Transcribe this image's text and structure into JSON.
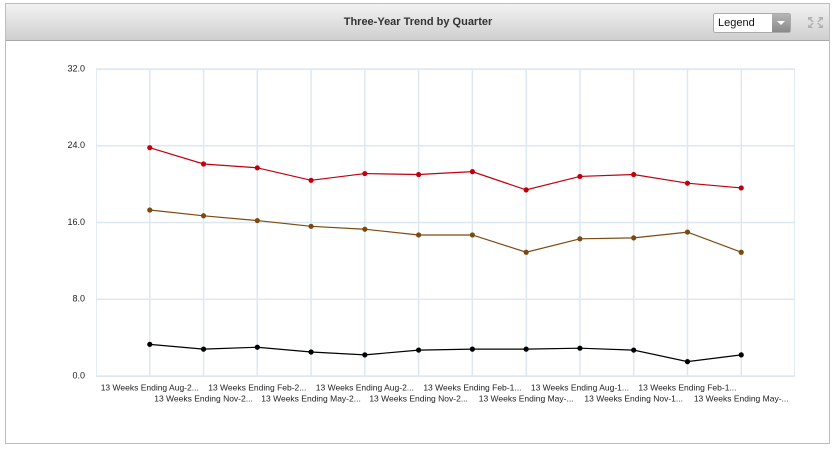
{
  "chart_data": {
    "type": "line",
    "title": "Three-Year Trend by Quarter",
    "categories": [
      "13 Weeks Ending Aug-2...",
      "13 Weeks Ending Nov-2...",
      "13 Weeks Ending Feb-2...",
      "13 Weeks Ending May-2...",
      "13 Weeks Ending Aug-2...",
      "13 Weeks Ending Nov-2...",
      "13 Weeks Ending Feb-1...",
      "13 Weeks Ending May-...",
      "13 Weeks Ending Aug-1...",
      "13 Weeks Ending Nov-1...",
      "13 Weeks Ending Feb-1...",
      "13 Weeks Ending May-..."
    ],
    "series": [
      {
        "color": "#c0000f",
        "values": [
          23.8,
          22.1,
          21.7,
          20.4,
          21.1,
          21.0,
          21.3,
          19.4,
          20.8,
          21.0,
          20.1,
          19.6
        ]
      },
      {
        "color": "#7a4a10",
        "values": [
          17.3,
          16.7,
          16.2,
          15.6,
          15.3,
          14.7,
          14.7,
          12.9,
          14.3,
          14.4,
          15.0,
          12.9
        ]
      },
      {
        "color": "#000000",
        "values": [
          3.3,
          2.8,
          3.0,
          2.5,
          2.2,
          2.7,
          2.8,
          2.8,
          2.9,
          2.7,
          1.5,
          2.2
        ]
      }
    ],
    "ylim": [
      0,
      32
    ],
    "yticks": [
      {
        "value": 0,
        "label": "0.0"
      },
      {
        "value": 8,
        "label": "8.0"
      },
      {
        "value": 16,
        "label": "16.0"
      },
      {
        "value": 24,
        "label": "24.0"
      },
      {
        "value": 32,
        "label": "32.0"
      }
    ],
    "grid": true
  },
  "controls": {
    "legend_button": "Legend"
  }
}
